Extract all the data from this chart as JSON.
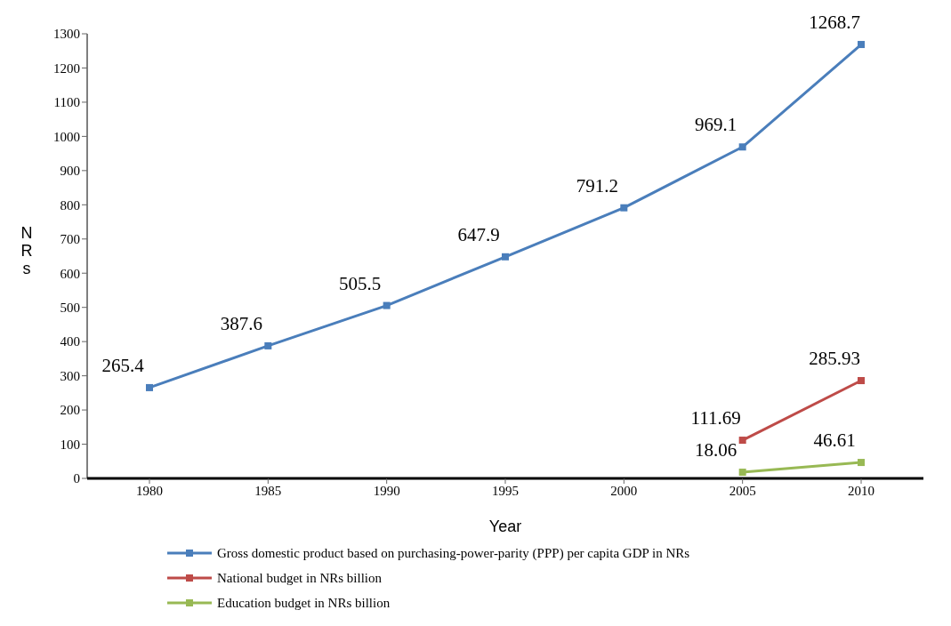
{
  "chart_data": {
    "type": "line",
    "xlabel": "Year",
    "ylabel": "NRs",
    "categories": [
      "1980",
      "1985",
      "1990",
      "1995",
      "2000",
      "2005",
      "2010"
    ],
    "series": [
      {
        "name": "Gross domestic product based on purchasing-power-parity (PPP) per capita GDP in NRs",
        "color": "#4a7ebb",
        "values": [
          265.4,
          387.6,
          505.5,
          647.9,
          791.2,
          969.1,
          1268.7
        ]
      },
      {
        "name": "National budget in NRs billion",
        "color": "#be4b48",
        "values": [
          null,
          null,
          null,
          null,
          null,
          111.69,
          285.93
        ]
      },
      {
        "name": "Education budget in NRs billion",
        "color": "#98b954",
        "values": [
          null,
          null,
          null,
          null,
          null,
          18.06,
          46.61
        ]
      }
    ],
    "ylim": [
      0,
      1300
    ],
    "yticks": [
      0,
      100,
      200,
      300,
      400,
      500,
      600,
      700,
      800,
      900,
      1000,
      1100,
      1200,
      1300
    ],
    "legend": "bottom",
    "marker": "square",
    "line_style": "solid",
    "data_labels": true
  }
}
